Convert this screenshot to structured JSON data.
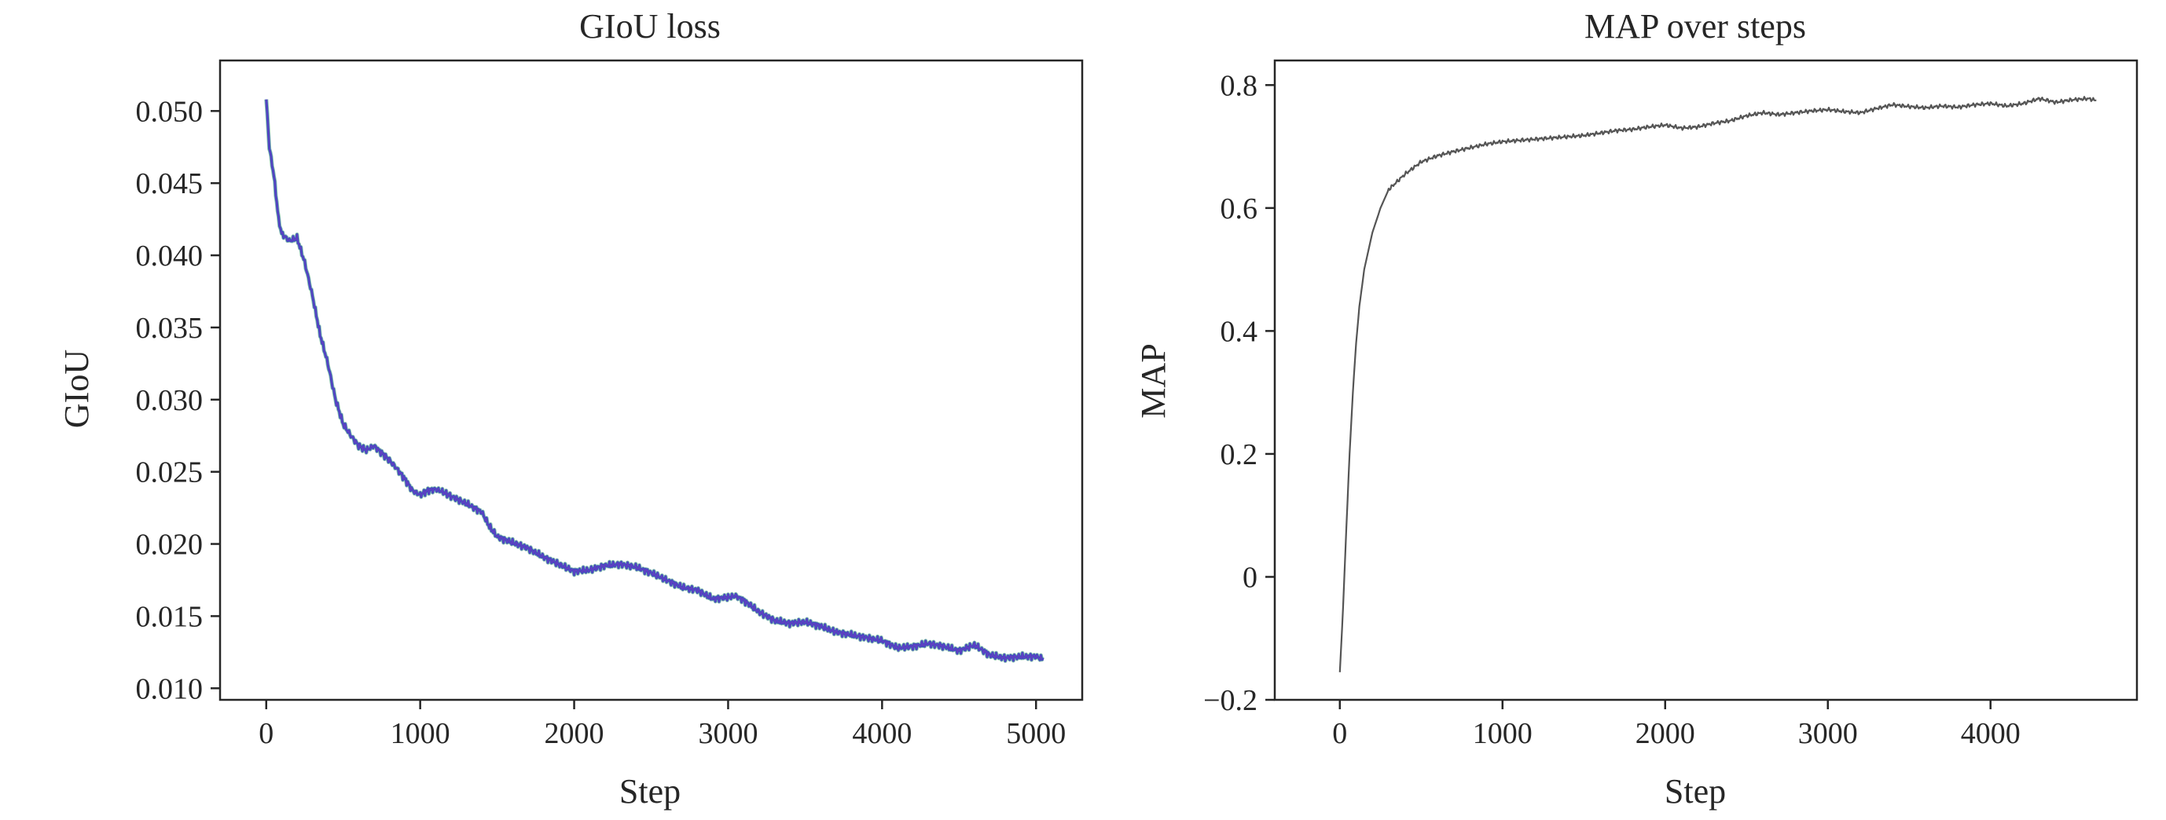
{
  "chart_data": [
    {
      "type": "line",
      "title": "GIoU loss",
      "xlabel": "Step",
      "ylabel": "GIoU",
      "xlim": [
        -300,
        5300
      ],
      "ylim": [
        0.0092,
        0.0535
      ],
      "xticks": [
        0,
        1000,
        2000,
        3000,
        4000,
        5000
      ],
      "xtick_labels": [
        "0",
        "1000",
        "2000",
        "3000",
        "4000",
        "5000"
      ],
      "yticks": [
        0.01,
        0.015,
        0.02,
        0.025,
        0.03,
        0.035,
        0.04,
        0.045,
        0.05
      ],
      "ytick_labels": [
        "0.010",
        "0.015",
        "0.020",
        "0.025",
        "0.030",
        "0.035",
        "0.040",
        "0.045",
        "0.050"
      ],
      "grid": false,
      "colors": [
        "#3b4cc0",
        "#6a3dc0",
        "#2f8f6f"
      ],
      "series": [
        {
          "x": [
            0,
            20,
            50,
            80,
            100,
            150,
            200,
            250,
            300,
            350,
            400,
            450,
            500,
            550,
            600,
            650,
            700,
            750,
            800,
            850,
            900,
            950,
            1000,
            1050,
            1100,
            1150,
            1200,
            1300,
            1400,
            1450,
            1500,
            1600,
            1700,
            1800,
            1900,
            2000,
            2100,
            2200,
            2300,
            2400,
            2500,
            2600,
            2700,
            2800,
            2900,
            3000,
            3050,
            3100,
            3200,
            3300,
            3400,
            3500,
            3600,
            3700,
            3800,
            3900,
            4000,
            4100,
            4200,
            4300,
            4400,
            4500,
            4600,
            4700,
            4800,
            4900,
            5000,
            5050
          ],
          "values": [
            0.0508,
            0.0475,
            0.0455,
            0.0425,
            0.0415,
            0.041,
            0.0412,
            0.0395,
            0.0372,
            0.0345,
            0.0325,
            0.03,
            0.0283,
            0.0275,
            0.0268,
            0.0265,
            0.0268,
            0.0263,
            0.0258,
            0.0252,
            0.0245,
            0.0237,
            0.0234,
            0.0237,
            0.0238,
            0.0236,
            0.0233,
            0.0228,
            0.0222,
            0.0212,
            0.0205,
            0.0201,
            0.0197,
            0.0191,
            0.0186,
            0.0181,
            0.0182,
            0.0185,
            0.0186,
            0.0184,
            0.018,
            0.0175,
            0.017,
            0.0168,
            0.0162,
            0.0163,
            0.0164,
            0.0161,
            0.0153,
            0.0147,
            0.0145,
            0.0146,
            0.0143,
            0.0139,
            0.0137,
            0.0135,
            0.0133,
            0.0128,
            0.0129,
            0.0131,
            0.0129,
            0.0126,
            0.013,
            0.0123,
            0.0121,
            0.0122,
            0.0122,
            0.012
          ]
        }
      ]
    },
    {
      "type": "line",
      "title": "MAP over steps",
      "xlabel": "Step",
      "ylabel": "MAP",
      "xlim": [
        -400,
        4900
      ],
      "ylim": [
        -0.2,
        0.84
      ],
      "xticks": [
        0,
        1000,
        2000,
        3000,
        4000
      ],
      "xtick_labels": [
        "0",
        "1000",
        "2000",
        "3000",
        "4000"
      ],
      "yticks": [
        -0.2,
        0,
        0.2,
        0.4,
        0.6,
        0.8
      ],
      "ytick_labels": [
        "−0.2",
        "0",
        "0.2",
        "0.4",
        "0.6",
        "0.8"
      ],
      "grid": false,
      "colors": [
        "#555555"
      ],
      "series": [
        {
          "x": [
            0,
            20,
            40,
            60,
            80,
            100,
            120,
            150,
            200,
            250,
            300,
            400,
            500,
            600,
            700,
            800,
            900,
            1000,
            1100,
            1200,
            1300,
            1400,
            1500,
            1600,
            1700,
            1800,
            1900,
            2000,
            2100,
            2200,
            2300,
            2400,
            2500,
            2600,
            2700,
            2800,
            2900,
            3000,
            3100,
            3200,
            3300,
            3400,
            3500,
            3600,
            3700,
            3800,
            3900,
            4000,
            4100,
            4200,
            4300,
            4400,
            4500,
            4600,
            4650
          ],
          "values": [
            -0.155,
            -0.05,
            0.08,
            0.2,
            0.3,
            0.38,
            0.44,
            0.5,
            0.56,
            0.6,
            0.63,
            0.655,
            0.675,
            0.685,
            0.692,
            0.698,
            0.704,
            0.708,
            0.71,
            0.712,
            0.714,
            0.716,
            0.718,
            0.722,
            0.726,
            0.728,
            0.732,
            0.735,
            0.73,
            0.732,
            0.738,
            0.742,
            0.75,
            0.755,
            0.752,
            0.755,
            0.758,
            0.76,
            0.757,
            0.755,
            0.762,
            0.768,
            0.765,
            0.763,
            0.766,
            0.764,
            0.768,
            0.77,
            0.766,
            0.77,
            0.778,
            0.772,
            0.776,
            0.778,
            0.775
          ]
        }
      ]
    }
  ]
}
